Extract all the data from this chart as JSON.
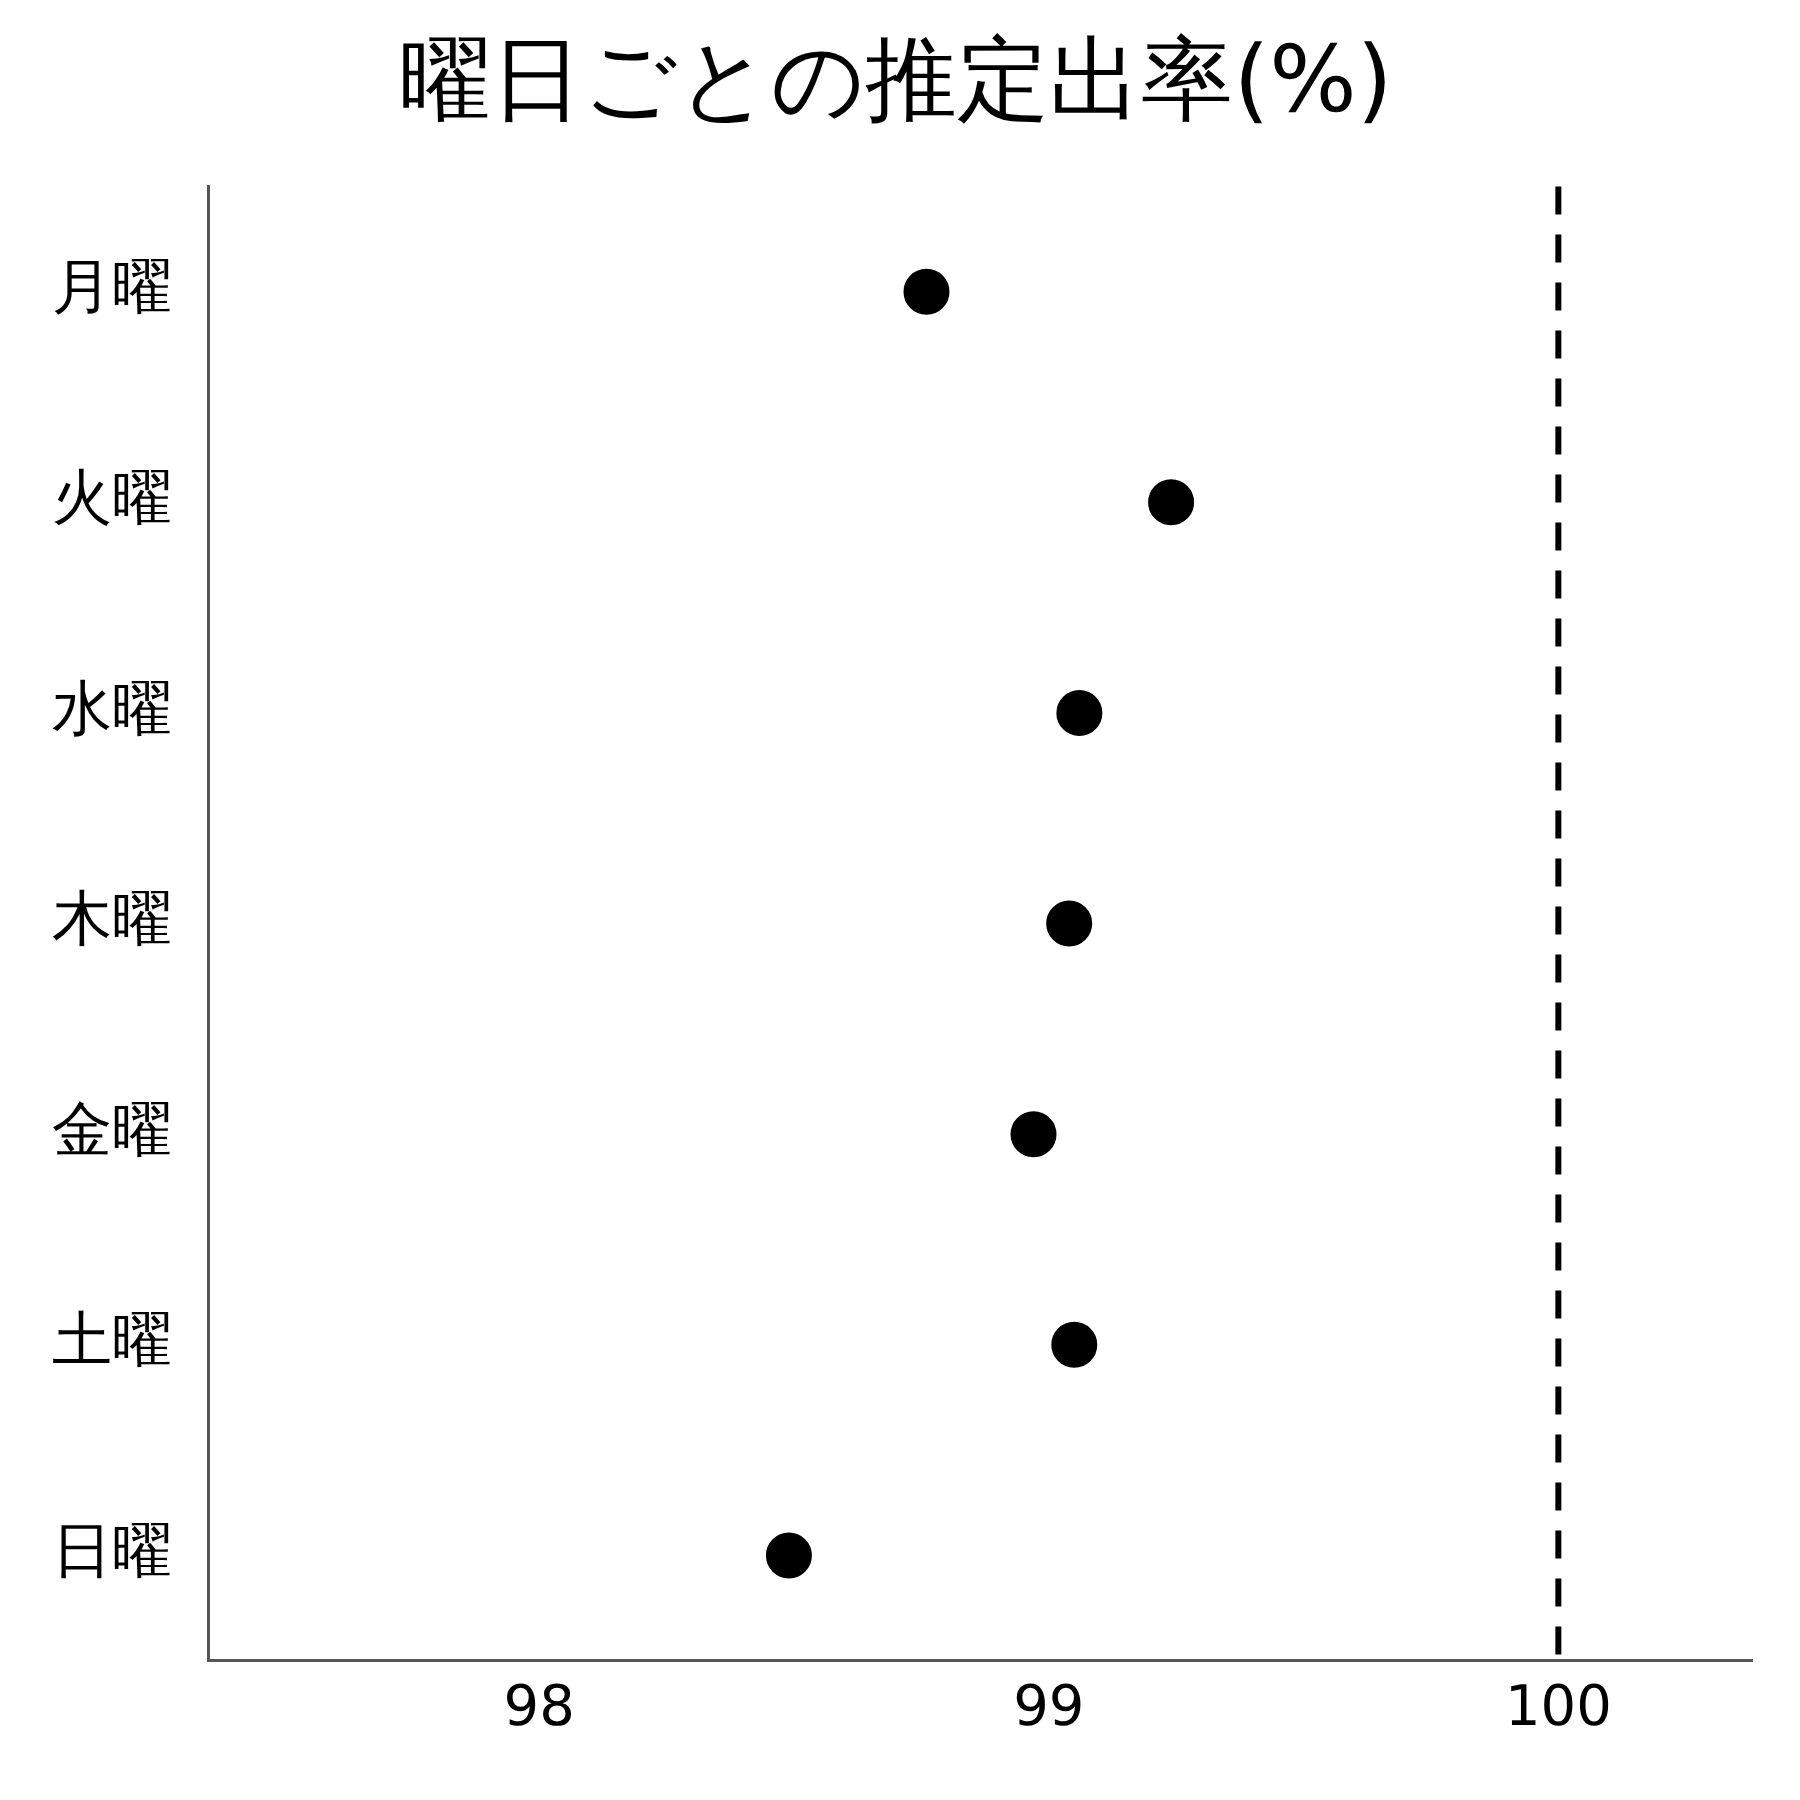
{
  "chart_data": {
    "type": "scatter",
    "title": "曜日ごとの推定出率(%)",
    "orientation": "horizontal",
    "categories": [
      "月曜",
      "火曜",
      "水曜",
      "木曜",
      "金曜",
      "土曜",
      "日曜"
    ],
    "values": [
      98.76,
      99.24,
      99.06,
      99.04,
      98.97,
      99.05,
      98.49
    ],
    "color": "#000000",
    "marker": "circle",
    "xlim": [
      97.35,
      100.38
    ],
    "xticks": [
      98,
      99,
      100
    ],
    "ref_lines": [
      {
        "axis": "x",
        "value": 100,
        "color": "#000000",
        "line_style": "dashed"
      }
    ],
    "grid": false,
    "legend": false
  }
}
